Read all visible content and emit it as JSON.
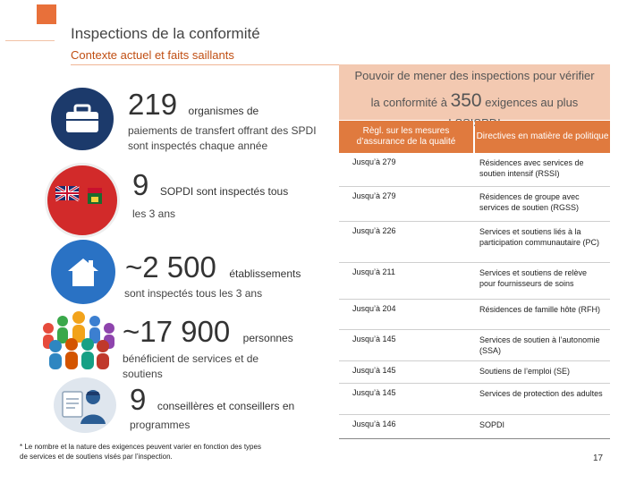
{
  "header": {
    "title": "Inspections de la conformité",
    "subtitle": "Contexte actuel et faits saillants"
  },
  "stats": [
    {
      "number": "219",
      "unit": "organismes de",
      "continuation": "paiements de transfert offrant des SPDI sont inspectés chaque année"
    },
    {
      "number": "9",
      "unit": "SOPDI sont inspectés tous",
      "continuation": "les 3 ans"
    },
    {
      "number": "~2 500",
      "unit": "établissements",
      "continuation": "sont inspectés tous les 3 ans"
    },
    {
      "number": "~17 900",
      "unit": "personnes",
      "continuation": "bénéficient de services et de soutiens"
    },
    {
      "number": "9",
      "unit": "conseillères et conseillers en",
      "continuation": "programmes"
    }
  ],
  "table": {
    "header_line1": "Pouvoir de mener des inspections pour vérifier",
    "header_line2_pre": "la conformité à",
    "header_number": "350",
    "header_line2_post": "exigences au plus",
    "header_line3": "LSSISPDI",
    "col1": "Règl. sur les mesures d’assurance de la qualité",
    "col2": "Directives en matière de politique",
    "rows": [
      {
        "req": "Jusqu’à 279",
        "service": "Résidences avec services de soutien intensif (RSSI)"
      },
      {
        "req": "Jusqu’à 279",
        "service": "Résidences de groupe avec services de soutien (RGSS)"
      },
      {
        "req": "Jusqu’à 226",
        "service": "Services et soutiens liés à la participation communautaire (PC)"
      },
      {
        "req": "Jusqu’à 211",
        "service": "Services et soutiens de relève pour fournisseurs de soins"
      },
      {
        "req": "Jusqu’à 204",
        "service": "Résidences de famille hôte (RFH)"
      },
      {
        "req": "Jusqu’à 145",
        "service": "Services de soutien à l’autonomie (SSA)"
      },
      {
        "req": "Jusqu’à 145",
        "service": "Soutiens de l’emploi (SE)"
      },
      {
        "req": "Jusqu’à 145",
        "service": "Services de protection des adultes"
      },
      {
        "req": "Jusqu’à 146",
        "service": "SOPDI"
      }
    ]
  },
  "footnote": "* Le nombre et la nature des exigences peuvent varier en fonction des types de services et de soutiens visés par l’inspection.",
  "page_number": "17",
  "icons": {
    "briefcase": "briefcase-icon",
    "flag": "ontario-flag-icon",
    "house": "house-icon",
    "people": "people-group-icon",
    "advisor": "advisor-icon"
  },
  "colors": {
    "accent": "#e07a3e",
    "navy": "#1c3a6b",
    "blue": "#2a72c4"
  }
}
